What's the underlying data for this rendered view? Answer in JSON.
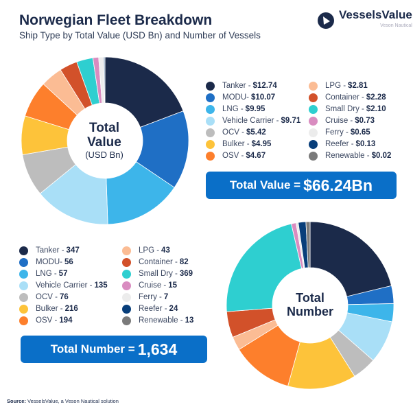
{
  "header": {
    "title": "Norwegian Fleet Breakdown",
    "subtitle": "Ship Type by Total Value (USD Bn) and Number of Vessels"
  },
  "logo": {
    "name": "VesselsValue",
    "tagline": "Veson Nautical"
  },
  "chart_data": [
    {
      "type": "pie",
      "variant": "donut",
      "center_label": [
        "Total",
        "Value",
        "(USD Bn)"
      ],
      "categories": [
        "Tanker",
        "MODU",
        "LNG",
        "Vehicle Carrier",
        "OCV",
        "Bulker",
        "OSV",
        "LPG",
        "Container",
        "Small Dry",
        "Cruise",
        "Ferry",
        "Reefer",
        "Renewable"
      ],
      "values": [
        12.74,
        10.07,
        9.95,
        9.71,
        5.42,
        4.95,
        4.67,
        2.81,
        2.28,
        2.1,
        0.73,
        0.65,
        0.13,
        0.02
      ],
      "labels": [
        "Tanker - ",
        "MODU- ",
        "LNG - ",
        "Vehicle Carrier - ",
        "OCV - ",
        "Bulker - ",
        "OSV - ",
        "LPG - ",
        "Container - ",
        "Small Dry - ",
        "Cruise - ",
        "Ferry - ",
        "Reefer - ",
        "Renewable - "
      ],
      "value_labels": [
        "$12.74",
        "$10.07",
        "$9.95",
        "$9.71",
        "$5.42",
        "$4.95",
        "$4.67",
        "$2.81",
        "$2.28",
        "$2.10",
        "$0.73",
        "$0.65",
        "$0.13",
        "$0.02"
      ],
      "total_label": "Total Value = ",
      "total_value": "$66.24Bn"
    },
    {
      "type": "pie",
      "variant": "donut",
      "center_label": [
        "Total",
        "Number"
      ],
      "categories": [
        "Tanker",
        "MODU",
        "LNG",
        "Vehicle Carrier",
        "OCV",
        "Bulker",
        "OSV",
        "LPG",
        "Container",
        "Small Dry",
        "Cruise",
        "Ferry",
        "Reefer",
        "Renewable"
      ],
      "values": [
        347,
        56,
        57,
        135,
        76,
        216,
        194,
        43,
        82,
        369,
        15,
        7,
        24,
        13
      ],
      "labels": [
        "Tanker - ",
        "MODU- ",
        "LNG - ",
        "Vehicle Carrier - ",
        "OCV - ",
        "Bulker - ",
        "OSV - ",
        "LPG - ",
        "Container - ",
        "Small Dry - ",
        "Cruise - ",
        "Ferry - ",
        "Reefer - ",
        "Renewable - "
      ],
      "value_labels": [
        "347",
        "56",
        "57",
        "135",
        "76",
        "216",
        "194",
        "43",
        "82",
        "369",
        "15",
        "7",
        "24",
        "13"
      ],
      "total_label": "Total Number = ",
      "total_value": "1,634"
    }
  ],
  "colors": [
    "#1b2a4a",
    "#1f6fc5",
    "#3db5ea",
    "#a9dff7",
    "#bdbdbd",
    "#fdc33a",
    "#fd7f2c",
    "#fbbc94",
    "#d2512a",
    "#2ecfd0",
    "#d98cc0",
    "#ececec",
    "#083e7a",
    "#7a7a7a"
  ],
  "source": {
    "label": "Source:",
    "text": " VesselsValue, a Veson Nautical solution"
  }
}
